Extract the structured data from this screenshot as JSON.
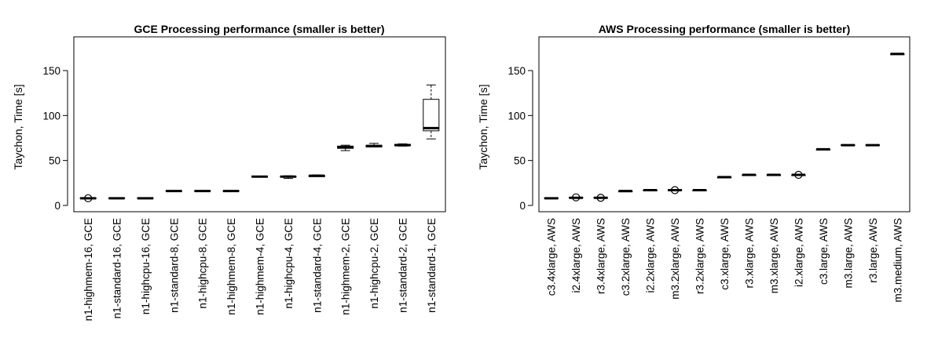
{
  "chart_data": [
    {
      "type": "box",
      "title": "GCE Processing performance (smaller is better)",
      "xlabel": "",
      "ylabel": "Taychon, Time [s]",
      "ylim": [
        0,
        185
      ],
      "yticks": [
        0,
        50,
        100,
        150
      ],
      "grid": false,
      "categories": [
        "n1-highmem-16, GCE",
        "n1-standard-16, GCE",
        "n1-highcpu-16, GCE",
        "n1-standard-8, GCE",
        "n1-highcpu-8, GCE",
        "n1-highmem-8, GCE",
        "n1-highmem-4, GCE",
        "n1-highcpu-4, GCE",
        "n1-standard-4, GCE",
        "n1-highmem-2, GCE",
        "n1-highcpu-2, GCE",
        "n1-standard-2, GCE",
        "n1-standard-1, GCE"
      ],
      "boxes": [
        {
          "lowWhisker": 7.5,
          "q1": 7.5,
          "median": 8,
          "q3": 8.5,
          "highWhisker": 8.5,
          "outliers": [
            8
          ]
        },
        {
          "lowWhisker": 8,
          "q1": 8,
          "median": 8,
          "q3": 8.5,
          "highWhisker": 8.5,
          "outliers": []
        },
        {
          "lowWhisker": 8,
          "q1": 8,
          "median": 8,
          "q3": 8.5,
          "highWhisker": 8.5,
          "outliers": []
        },
        {
          "lowWhisker": 15.5,
          "q1": 15.5,
          "median": 16,
          "q3": 16.5,
          "highWhisker": 16.5,
          "outliers": []
        },
        {
          "lowWhisker": 16,
          "q1": 16,
          "median": 16,
          "q3": 16.5,
          "highWhisker": 16.5,
          "outliers": []
        },
        {
          "lowWhisker": 16,
          "q1": 16,
          "median": 16,
          "q3": 16.5,
          "highWhisker": 16.5,
          "outliers": []
        },
        {
          "lowWhisker": 31.5,
          "q1": 31.5,
          "median": 32,
          "q3": 32.5,
          "highWhisker": 32.5,
          "outliers": []
        },
        {
          "lowWhisker": 30,
          "q1": 31.5,
          "median": 32,
          "q3": 32.5,
          "highWhisker": 33,
          "outliers": []
        },
        {
          "lowWhisker": 32,
          "q1": 32,
          "median": 33,
          "q3": 33.5,
          "highWhisker": 34,
          "outliers": []
        },
        {
          "lowWhisker": 61,
          "q1": 63.5,
          "median": 65,
          "q3": 66,
          "highWhisker": 67,
          "outliers": []
        },
        {
          "lowWhisker": 65,
          "q1": 65,
          "median": 66,
          "q3": 67,
          "highWhisker": 69,
          "outliers": []
        },
        {
          "lowWhisker": 66,
          "q1": 66.5,
          "median": 67,
          "q3": 68,
          "highWhisker": 68.5,
          "outliers": []
        },
        {
          "lowWhisker": 74,
          "q1": 83,
          "median": 86,
          "q3": 118,
          "highWhisker": 134,
          "outliers": []
        }
      ]
    },
    {
      "type": "box",
      "title": "AWS Processing performance (smaller is better)",
      "xlabel": "",
      "ylabel": "Taychon, Time [s]",
      "ylim": [
        0,
        185
      ],
      "yticks": [
        0,
        50,
        100,
        150
      ],
      "grid": false,
      "categories": [
        "c3.4xlarge, AWS",
        "i2.4xlarge, AWS",
        "r3.4xlarge, AWS",
        "c3.2xlarge, AWS",
        "i2.2xlarge, AWS",
        "m3.2xlarge, AWS",
        "r3.2xlarge, AWS",
        "c3.xlarge, AWS",
        "r3.xlarge, AWS",
        "m3.xlarge, AWS",
        "i2.xlarge, AWS",
        "c3.large, AWS",
        "m3.large, AWS",
        "r3.large, AWS",
        "m3.medium, AWS"
      ],
      "boxes": [
        {
          "lowWhisker": 8,
          "q1": 8,
          "median": 8,
          "q3": 8.5,
          "highWhisker": 8.5,
          "outliers": []
        },
        {
          "lowWhisker": 8.5,
          "q1": 8.5,
          "median": 8.5,
          "q3": 9,
          "highWhisker": 9,
          "outliers": [
            9
          ]
        },
        {
          "lowWhisker": 8.5,
          "q1": 8.5,
          "median": 8.5,
          "q3": 9,
          "highWhisker": 9,
          "outliers": [
            8.5
          ]
        },
        {
          "lowWhisker": 15.5,
          "q1": 15.5,
          "median": 16,
          "q3": 16,
          "highWhisker": 16,
          "outliers": []
        },
        {
          "lowWhisker": 16.5,
          "q1": 16.5,
          "median": 17,
          "q3": 17,
          "highWhisker": 17,
          "outliers": []
        },
        {
          "lowWhisker": 16.5,
          "q1": 16.5,
          "median": 17,
          "q3": 17.5,
          "highWhisker": 17.5,
          "outliers": [
            17
          ]
        },
        {
          "lowWhisker": 16.5,
          "q1": 16.5,
          "median": 17,
          "q3": 17,
          "highWhisker": 17,
          "outliers": []
        },
        {
          "lowWhisker": 31,
          "q1": 31,
          "median": 31.5,
          "q3": 31.5,
          "highWhisker": 31.5,
          "outliers": []
        },
        {
          "lowWhisker": 33.5,
          "q1": 33.5,
          "median": 34,
          "q3": 34,
          "highWhisker": 34,
          "outliers": []
        },
        {
          "lowWhisker": 33.5,
          "q1": 33.5,
          "median": 34,
          "q3": 34,
          "highWhisker": 34,
          "outliers": []
        },
        {
          "lowWhisker": 33.5,
          "q1": 33.5,
          "median": 34,
          "q3": 34,
          "highWhisker": 34,
          "outliers": [
            34
          ]
        },
        {
          "lowWhisker": 62,
          "q1": 62,
          "median": 62.5,
          "q3": 62.5,
          "highWhisker": 62.5,
          "outliers": []
        },
        {
          "lowWhisker": 67,
          "q1": 67,
          "median": 67,
          "q3": 67.5,
          "highWhisker": 67.5,
          "outliers": []
        },
        {
          "lowWhisker": 67,
          "q1": 67,
          "median": 67,
          "q3": 67.5,
          "highWhisker": 67.5,
          "outliers": []
        },
        {
          "lowWhisker": 168,
          "q1": 168,
          "median": 168.5,
          "q3": 168.5,
          "highWhisker": 168.5,
          "outliers": []
        }
      ]
    }
  ]
}
